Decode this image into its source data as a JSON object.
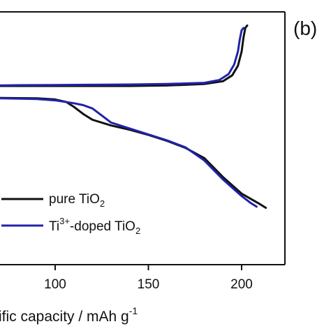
{
  "panel_label": "(b)",
  "chart_data": {
    "type": "line",
    "xlabel_visible": "ific capacity / mAh g",
    "xlabel_sup": "-1",
    "xlim": [
      50,
      220
    ],
    "ylim": [
      0,
      1
    ],
    "x_ticks": [
      100,
      150,
      200
    ],
    "grid": false,
    "legend_placement": "bottom-left",
    "series": [
      {
        "name_parts": [
          "pure TiO",
          "2"
        ],
        "color": "#111111",
        "branches": [
          {
            "branch": "charge",
            "x": [
              50,
              60,
              70,
              80,
              100,
              120,
              140,
              160,
              180,
              190,
              195,
              198,
              200,
              201,
              202,
              203
            ],
            "y": [
              0.74,
              0.75,
              0.755,
              0.755,
              0.755,
              0.755,
              0.755,
              0.757,
              0.763,
              0.775,
              0.8,
              0.84,
              0.9,
              0.96,
              1.0,
              1.01
            ]
          },
          {
            "branch": "discharge",
            "x": [
              50,
              70,
              90,
              100,
              106,
              110,
              115,
              120,
              130,
              140,
              150,
              160,
              170,
              180,
              190,
              200,
              210,
              213
            ],
            "y": [
              0.7,
              0.704,
              0.703,
              0.698,
              0.687,
              0.667,
              0.637,
              0.612,
              0.588,
              0.57,
              0.548,
              0.523,
              0.493,
              0.45,
              0.37,
              0.3,
              0.255,
              0.24
            ]
          }
        ]
      },
      {
        "name_parts": [
          "Ti",
          "3+",
          "-doped TiO",
          "2"
        ],
        "color": "#2222aa",
        "branches": [
          {
            "branch": "charge",
            "x": [
              50,
              60,
              70,
              80,
              100,
              120,
              140,
              160,
              180,
              188,
              193,
              196,
              198,
              199,
              200,
              201
            ],
            "y": [
              0.745,
              0.752,
              0.757,
              0.758,
              0.759,
              0.76,
              0.761,
              0.763,
              0.768,
              0.78,
              0.805,
              0.845,
              0.9,
              0.95,
              0.99,
              1.0
            ]
          },
          {
            "branch": "discharge",
            "x": [
              50,
              70,
              90,
              100,
              110,
              115,
              120,
              125,
              130,
              140,
              150,
              160,
              170,
              180,
              190,
              200,
              205,
              208
            ],
            "y": [
              0.702,
              0.703,
              0.7,
              0.694,
              0.682,
              0.674,
              0.66,
              0.63,
              0.6,
              0.575,
              0.55,
              0.525,
              0.495,
              0.44,
              0.36,
              0.29,
              0.26,
              0.245
            ]
          }
        ]
      }
    ]
  }
}
